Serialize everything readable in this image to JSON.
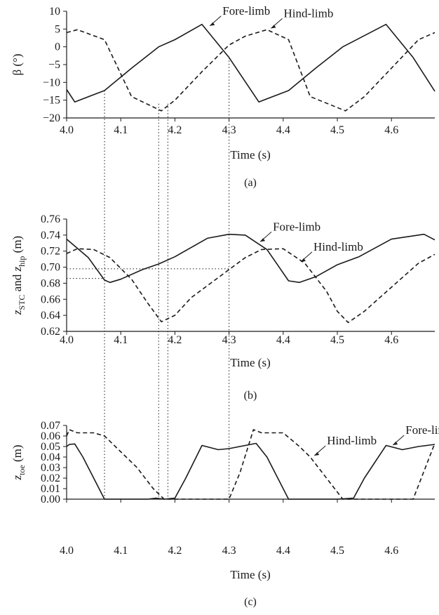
{
  "chart_data": [
    {
      "type": "line",
      "panel_label": "(a)",
      "xlabel": "Time (s)",
      "ylabel": "β (°)",
      "xlim": [
        4.0,
        4.68
      ],
      "ylim": [
        -20,
        10
      ],
      "xticks": [
        "4.0",
        "4.1",
        "4.2",
        "4.3",
        "4.4",
        "4.5",
        "4.6"
      ],
      "yticks": [
        "10",
        "5",
        "0",
        "−5",
        "−10",
        "−15",
        "−20"
      ],
      "series": [
        {
          "name": "Fore-limb",
          "style": "solid",
          "x": [
            4.0,
            4.015,
            4.07,
            4.12,
            4.17,
            4.2,
            4.25,
            4.3,
            4.355,
            4.41,
            4.46,
            4.51,
            4.59,
            4.64,
            4.68
          ],
          "y": [
            -12,
            -15.5,
            -12.3,
            -6,
            0,
            2,
            6.3,
            -3,
            -15.5,
            -12.3,
            -6,
            0,
            6.3,
            -3,
            -12.5
          ]
        },
        {
          "name": "Hind-limb",
          "style": "dashed",
          "x": [
            4.0,
            4.02,
            4.07,
            4.12,
            4.175,
            4.2,
            4.25,
            4.3,
            4.33,
            4.37,
            4.41,
            4.45,
            4.515,
            4.55,
            4.6,
            4.65,
            4.68
          ],
          "y": [
            4,
            4.8,
            2,
            -14,
            -18,
            -15,
            -7,
            0.5,
            3,
            4.8,
            2,
            -14,
            -18,
            -14,
            -6,
            2,
            4
          ]
        }
      ],
      "annotations": [
        {
          "text": "Fore-limb",
          "x": 4.262,
          "y": 5.5
        },
        {
          "text": "Hind-limb",
          "x": 4.375,
          "y": 4.8
        }
      ]
    },
    {
      "type": "line",
      "panel_label": "(b)",
      "xlabel": "Time (s)",
      "ylabel_parts": [
        "z",
        "STC",
        " and z",
        "hip",
        " (m)"
      ],
      "xlim": [
        4.0,
        4.68
      ],
      "ylim": [
        0.62,
        0.76
      ],
      "xticks": [
        "4.0",
        "4.1",
        "4.2",
        "4.3",
        "4.4",
        "4.5",
        "4.6"
      ],
      "yticks": [
        "0.76",
        "0.74",
        "0.72",
        "0.70",
        "0.68",
        "0.66",
        "0.64",
        "0.62"
      ],
      "series": [
        {
          "name": "Fore-limb",
          "style": "solid",
          "x": [
            4.0,
            4.04,
            4.07,
            4.08,
            4.1,
            4.14,
            4.17,
            4.2,
            4.26,
            4.3,
            4.33,
            4.37,
            4.41,
            4.43,
            4.46,
            4.5,
            4.54,
            4.6,
            4.66,
            4.68
          ],
          "y": [
            0.735,
            0.712,
            0.684,
            0.681,
            0.685,
            0.697,
            0.704,
            0.713,
            0.736,
            0.741,
            0.74,
            0.722,
            0.683,
            0.681,
            0.688,
            0.703,
            0.713,
            0.735,
            0.741,
            0.734
          ]
        },
        {
          "name": "Hind-limb",
          "style": "dashed",
          "x": [
            4.0,
            4.02,
            4.05,
            4.08,
            4.12,
            4.15,
            4.175,
            4.2,
            4.23,
            4.26,
            4.3,
            4.33,
            4.36,
            4.4,
            4.44,
            4.48,
            4.5,
            4.52,
            4.55,
            4.6,
            4.65,
            4.68
          ],
          "y": [
            0.717,
            0.723,
            0.722,
            0.712,
            0.685,
            0.655,
            0.632,
            0.64,
            0.662,
            0.677,
            0.697,
            0.712,
            0.722,
            0.723,
            0.705,
            0.67,
            0.645,
            0.631,
            0.645,
            0.675,
            0.705,
            0.716
          ]
        }
      ],
      "annotations": [
        {
          "text": "Fore-limb",
          "x": 4.355,
          "y": 0.73
        },
        {
          "text": "Hind-limb",
          "x": 4.43,
          "y": 0.705
        }
      ]
    },
    {
      "type": "line",
      "panel_label": "(c)",
      "xlabel": "Time (s)",
      "ylabel_parts": [
        "z",
        "toe",
        " (m)"
      ],
      "xlim": [
        4.0,
        4.68
      ],
      "ylim": [
        0.0,
        0.07
      ],
      "xticks": [
        "4.0",
        "4.1",
        "4.2",
        "4.3",
        "4.4",
        "4.5",
        "4.6"
      ],
      "yticks": [
        "0.07",
        "0.06",
        "0.05",
        "0.04",
        "0.03",
        "0.02",
        "0.01",
        "0.00"
      ],
      "series": [
        {
          "name": "Fore-limb",
          "style": "solid",
          "x": [
            4.0,
            4.005,
            4.015,
            4.03,
            4.05,
            4.07,
            4.1,
            4.15,
            4.165,
            4.18,
            4.2,
            4.22,
            4.25,
            4.28,
            4.3,
            4.35,
            4.37,
            4.4,
            4.41,
            4.5,
            4.53,
            4.55,
            4.59,
            4.62,
            4.65,
            4.68
          ],
          "y": [
            0.05,
            0.052,
            0.0525,
            0.04,
            0.02,
            0.0,
            0.0,
            0.0,
            0.001,
            0.0,
            0.001,
            0.02,
            0.051,
            0.047,
            0.048,
            0.053,
            0.04,
            0.01,
            0.0,
            0.0,
            0.001,
            0.02,
            0.051,
            0.047,
            0.05,
            0.052
          ]
        },
        {
          "name": "Hind-limb",
          "style": "dashed",
          "x": [
            4.0,
            4.005,
            4.02,
            4.05,
            4.07,
            4.1,
            4.13,
            4.16,
            4.18,
            4.2,
            4.28,
            4.3,
            4.32,
            4.345,
            4.36,
            4.4,
            4.43,
            4.45,
            4.48,
            4.51,
            4.58,
            4.6,
            4.64,
            4.68
          ],
          "y": [
            0.06,
            0.066,
            0.063,
            0.063,
            0.06,
            0.045,
            0.03,
            0.01,
            0.0,
            0.0,
            0.0,
            0.0,
            0.025,
            0.066,
            0.063,
            0.063,
            0.05,
            0.04,
            0.02,
            0.0,
            0.0,
            0.0,
            0.0,
            0.053
          ]
        }
      ],
      "annotations": [
        {
          "text": "Fore-limb",
          "x": 4.6,
          "y": 0.05
        },
        {
          "text": "Hind-limb",
          "x": 4.455,
          "y": 0.04
        }
      ]
    }
  ],
  "reference_lines": {
    "vertical_x": [
      4.07,
      4.17,
      4.187,
      4.3
    ],
    "horizontal_y_panel_b": [
      0.698,
      0.686
    ]
  }
}
